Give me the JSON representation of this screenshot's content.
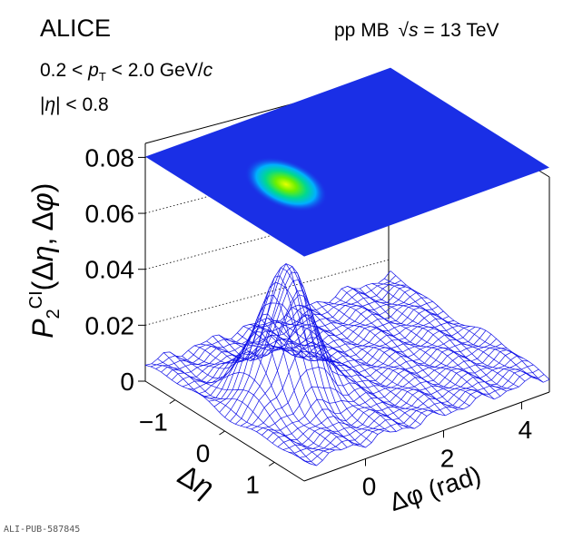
{
  "chart_data": {
    "type": "surface",
    "experiment": "ALICE",
    "system": "pp MB",
    "energy_label": "√s = 13 TeV",
    "pt_cut": "0.2 < pT < 2.0 GeV/c",
    "eta_cut": "|η| < 0.8",
    "zlabel": "P2CI(Δη, Δφ)",
    "xlabel": "Δφ (rad)",
    "ylabel": "Δη",
    "z_ticks": [
      "0",
      "0.02",
      "0.04",
      "0.06",
      "0.08"
    ],
    "x_ticks": [
      "0",
      "2",
      "4"
    ],
    "y_ticks": [
      "−1",
      "0",
      "1"
    ],
    "zlim": [
      0,
      0.085
    ],
    "xlim": [
      -1.57,
      4.71
    ],
    "ylim": [
      -1.6,
      1.6
    ],
    "baseline": 0.006,
    "peak": {
      "dphi": 0,
      "deta": 0,
      "height": 0.045,
      "sigma_dphi": 0.55,
      "sigma_deta": 0.35
    },
    "top_projection": "color map of the surface",
    "colors": {
      "mesh": "#1010e8",
      "projection_base": "#1a2fe6"
    }
  },
  "reference": "ALI-PUB-587845"
}
